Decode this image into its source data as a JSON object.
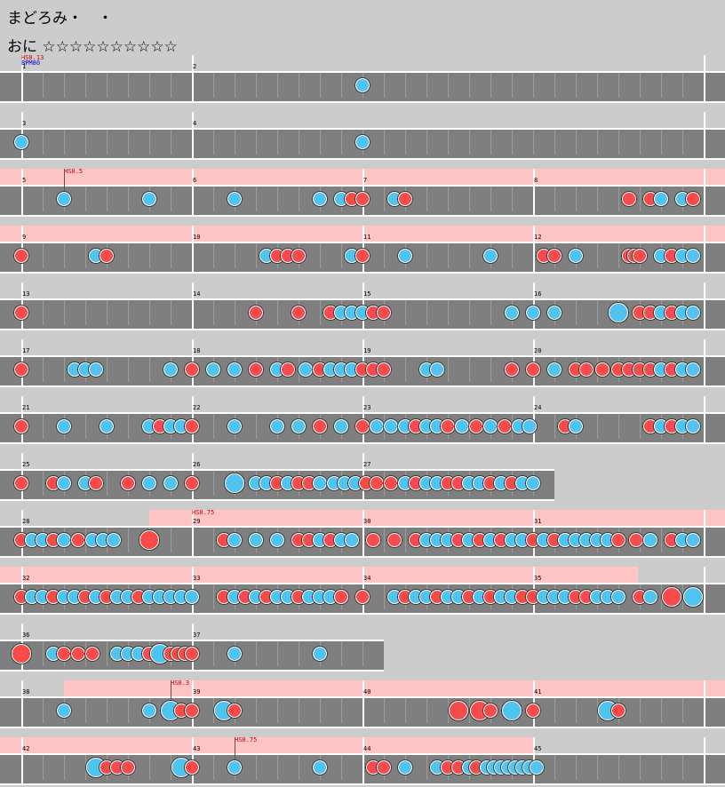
{
  "header": {
    "song_title": "まどろみ・　・",
    "difficulty": "おに ☆☆☆☆☆☆☆☆☆☆"
  },
  "colors": {
    "don": "#f84c4c",
    "ka": "#50c4f0",
    "hs_zone": "#ffc4c4",
    "lane": "#7f7f7f",
    "background": "#cccccc"
  },
  "chart": {
    "rows": [
      {
        "measures": [
          "1",
          "2"
        ],
        "pink": false,
        "pinkRatio": 0,
        "width": 1,
        "hs": "HS0.13",
        "bpm": "BPM80",
        "hsMarker": false,
        "notes": "bS...r.."
      },
      {
        "measures": [
          "3",
          "4"
        ],
        "pink": false,
        "pinkRatio": 0,
        "width": 1,
        "hs": "",
        "bpm": "",
        "hsMarker": false,
        "notes": "b.......|b......."
      },
      {
        "measures": [
          "5",
          "6",
          "7",
          "8"
        ],
        "pink": true,
        "pinkRatio": 1,
        "width": 1,
        "hs": "HS0.5",
        "bpm": "",
        "hsMarker": true,
        "notes": "k"
      },
      {
        "measures": [
          "9",
          "10",
          "11",
          "12"
        ],
        "pink": true,
        "pinkRatio": 1,
        "width": 1,
        "hs": "",
        "bpm": "",
        "hsMarker": false,
        "notes": "m"
      },
      {
        "measures": [
          "13",
          "14",
          "15",
          "16"
        ],
        "pink": false,
        "pinkRatio": 0,
        "width": 1,
        "hs": "",
        "bpm": "",
        "hsMarker": false,
        "notes": "d"
      },
      {
        "measures": [
          "17",
          "18",
          "19",
          "20"
        ],
        "pink": false,
        "pinkRatio": 0,
        "width": 1,
        "hs": "",
        "bpm": "",
        "hsMarker": false,
        "notes": "d"
      },
      {
        "measures": [
          "21",
          "22",
          "23",
          "24"
        ],
        "pink": false,
        "pinkRatio": 0,
        "width": 1,
        "hs": "",
        "bpm": "",
        "hsMarker": false,
        "notes": "d"
      },
      {
        "measures": [
          "25",
          "26",
          "27"
        ],
        "pink": false,
        "pinkRatio": 0,
        "width": 0.765,
        "hs": "",
        "bpm": "",
        "hsMarker": false,
        "notes": "d"
      },
      {
        "measures": [
          "28",
          "29",
          "30",
          "31"
        ],
        "pink": true,
        "pinkRatio": 0.795,
        "width": 1,
        "hs": "HS0.75",
        "bpm": "",
        "hsMarker": false,
        "notes": "d"
      },
      {
        "measures": [
          "32",
          "33",
          "34",
          "35"
        ],
        "pink": true,
        "pinkRatio": 0.88,
        "width": 1,
        "hs": "",
        "bpm": "",
        "hsMarker": false,
        "notes": "d"
      },
      {
        "measures": [
          "36",
          "37"
        ],
        "pink": false,
        "pinkRatio": 0,
        "width": 0.53,
        "hs": "",
        "bpm": "",
        "hsMarker": false,
        "notes": "d"
      },
      {
        "measures": [
          "38",
          "39",
          "40",
          "41"
        ],
        "pink": true,
        "pinkRatio": 0.91,
        "width": 1,
        "hs": "HS0.3",
        "bpm": "",
        "hsMarker": true,
        "notes": "d"
      },
      {
        "measures": [
          "42",
          "43",
          "44",
          "45"
        ],
        "pink": true,
        "pinkRatio": 0.735,
        "width": 1,
        "hs": "HS0.75",
        "bpm": "",
        "hsMarker": true,
        "notes": "d"
      }
    ]
  }
}
